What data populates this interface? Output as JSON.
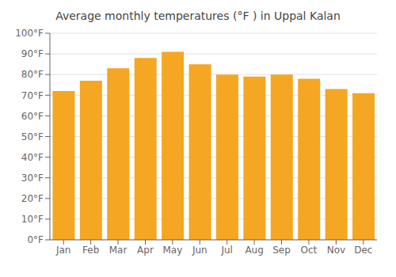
{
  "chart_data": {
    "type": "bar",
    "title": "Average monthly temperatures (°F ) in Uppal Kalan",
    "categories": [
      "Jan",
      "Feb",
      "Mar",
      "Apr",
      "May",
      "Jun",
      "Jul",
      "Aug",
      "Sep",
      "Oct",
      "Nov",
      "Dec"
    ],
    "values": [
      72,
      77,
      83,
      88,
      91,
      85,
      80,
      79,
      80,
      78,
      73,
      71
    ],
    "color": "#F5A623",
    "ylim": [
      0,
      100
    ],
    "yticks": [
      {
        "value": 0,
        "label": "0°F"
      },
      {
        "value": 10,
        "label": "10°F"
      },
      {
        "value": 20,
        "label": "20°F"
      },
      {
        "value": 30,
        "label": "30°F"
      },
      {
        "value": 40,
        "label": "40°F"
      },
      {
        "value": 50,
        "label": "50°F"
      },
      {
        "value": 60,
        "label": "60°F"
      },
      {
        "value": 70,
        "label": "70°F"
      },
      {
        "value": 80,
        "label": "80°F"
      },
      {
        "value": 90,
        "label": "90°F"
      },
      {
        "value": 100,
        "label": "100°F"
      }
    ],
    "grid": true
  }
}
